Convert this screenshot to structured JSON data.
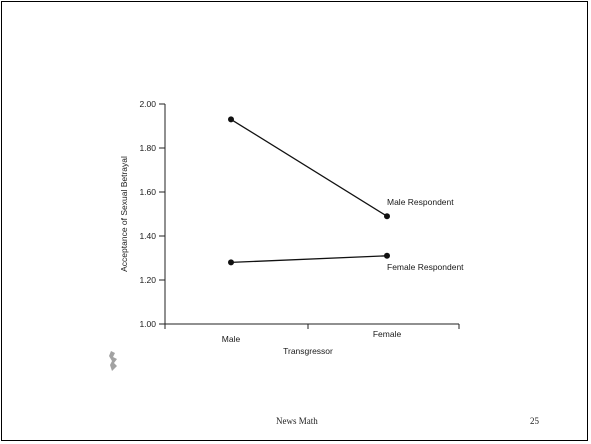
{
  "chart_data": {
    "type": "line",
    "categories": [
      "Male",
      "Female"
    ],
    "series": [
      {
        "name": "Male Respondent",
        "values": [
          1.93,
          1.49
        ]
      },
      {
        "name": "Female Respondent",
        "values": [
          1.28,
          1.31
        ]
      }
    ],
    "xlabel": "Transgressor",
    "ylabel": "Acceptance of Sexual Betrayal",
    "ylim": [
      1.0,
      2.0
    ],
    "yticks": [
      "1.00",
      "1.20",
      "1.40",
      "1.60",
      "1.80",
      "2.00"
    ],
    "legend": "inline-labels-right"
  },
  "footer": {
    "center_text": "News Math",
    "page_number": "25"
  },
  "colors": {
    "line": "#111111",
    "background": "#ffffff"
  }
}
